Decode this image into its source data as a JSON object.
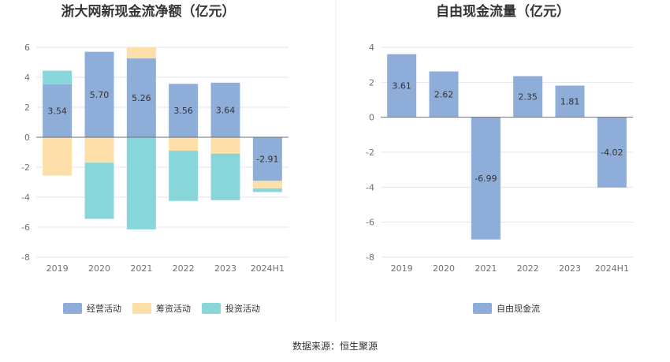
{
  "source": "数据来源：恒生聚源",
  "chart_data": [
    {
      "type": "bar",
      "stacked": true,
      "title": "浙大网新现金流净额（亿元）",
      "categories": [
        "2019",
        "2020",
        "2021",
        "2022",
        "2023",
        "2024H1"
      ],
      "ylim": [
        -8,
        6
      ],
      "yticks": [
        6,
        4,
        2,
        0,
        -2,
        -4,
        -6,
        -8
      ],
      "grid": true,
      "legend": "bottom",
      "series": [
        {
          "name": "经营活动",
          "color": "#8eadd9",
          "values": [
            3.54,
            5.7,
            5.26,
            3.56,
            3.64,
            -2.91
          ],
          "labels": [
            "3.54",
            "5.70",
            "5.26",
            "3.56",
            "3.64",
            "-2.91"
          ]
        },
        {
          "name": "筹资活动",
          "color": "#fddfa9",
          "values": [
            -2.55,
            -1.7,
            0.74,
            -0.9,
            -1.1,
            -0.5
          ]
        },
        {
          "name": "投资活动",
          "color": "#88d6d9",
          "values": [
            0.9,
            -3.75,
            -6.15,
            -3.35,
            -3.1,
            -0.25
          ]
        }
      ]
    },
    {
      "type": "bar",
      "title": "自由现金流量（亿元）",
      "categories": [
        "2019",
        "2020",
        "2021",
        "2022",
        "2023",
        "2024H1"
      ],
      "ylim": [
        -8,
        4
      ],
      "yticks": [
        4,
        2,
        0,
        -2,
        -4,
        -6,
        -8
      ],
      "grid": true,
      "legend": "bottom",
      "series": [
        {
          "name": "自由现金流",
          "color": "#8eadd9",
          "values": [
            3.61,
            2.62,
            -6.99,
            2.35,
            1.81,
            -4.02
          ],
          "labels": [
            "3.61",
            "2.62",
            "-6.99",
            "2.35",
            "1.81",
            "-4.02"
          ]
        }
      ]
    }
  ]
}
